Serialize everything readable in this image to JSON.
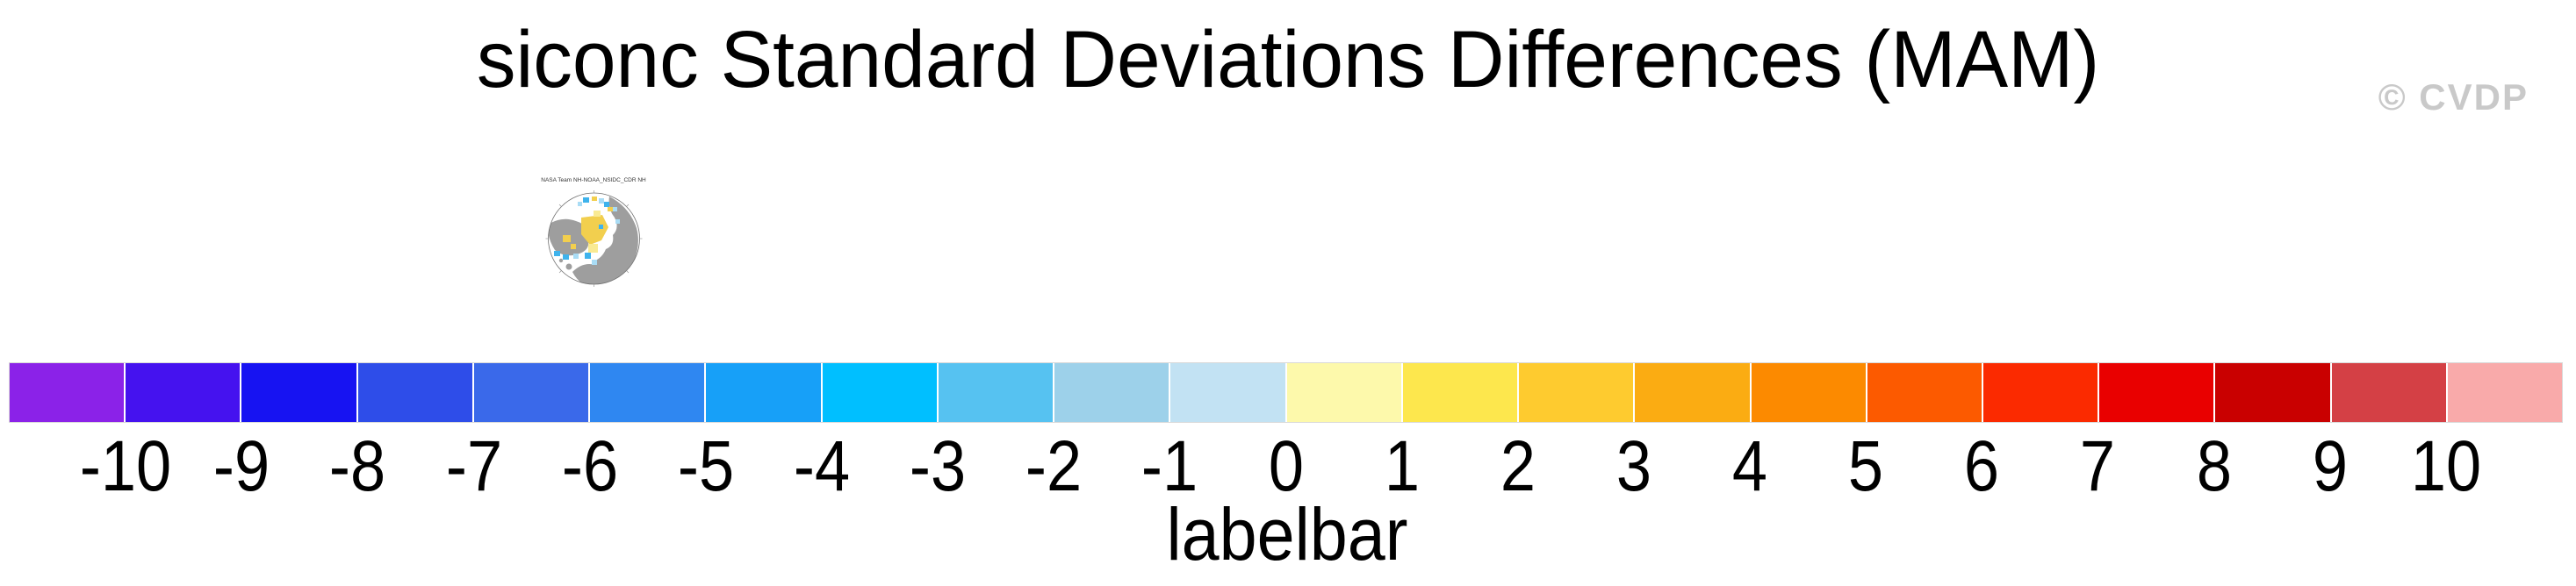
{
  "header": {
    "title": "siconc Standard Deviations Differences (MAM)",
    "watermark": "© CVDP",
    "watermark_color": "#c9c9c9"
  },
  "thumbnail": {
    "title": "NASA Team NH-NOAA_NSIDC_CDR NH",
    "land_color": "#9e9e9e",
    "ocean_color": "#ffffff",
    "outline_color": "#6f6f6f",
    "tick_mark_color": "#9a9a9a",
    "positive_patch_color": "#f2cf4e",
    "positive_patch_light_color": "#f9ea93",
    "negative_patch_color": "#3fb3ec",
    "negative_patch_light_color": "#a9dcf5"
  },
  "labelbar": {
    "caption": "labelbar",
    "tick_labels": [
      "-10",
      "-9",
      "-8",
      "-7",
      "-6",
      "-5",
      "-4",
      "-3",
      "-2",
      "-1",
      "0",
      "1",
      "2",
      "3",
      "4",
      "5",
      "6",
      "7",
      "8",
      "9",
      "10"
    ],
    "colors": [
      "#8b22e8",
      "#4512ef",
      "#1713f2",
      "#2e4de9",
      "#3a69ea",
      "#2f87f1",
      "#17a0f8",
      "#00bfff",
      "#56c2f1",
      "#9dd1ea",
      "#c2e2f3",
      "#fdf9ab",
      "#fde74d",
      "#fecb2f",
      "#fbac12",
      "#fc8a00",
      "#fc5a00",
      "#fb2a00",
      "#e90000",
      "#c90000",
      "#d44045",
      "#f9aaaa"
    ],
    "separator_color": "#ffffff",
    "border_color": "#d9d9d9"
  },
  "chart_data": {
    "type": "heatmap",
    "title": "siconc Standard Deviations Differences (MAM)",
    "subtitle": "NASA Team NH-NOAA_NSIDC_CDR NH",
    "xlabel": "labelbar",
    "ylabel": "",
    "legend_position": "bottom",
    "grid": false,
    "levels": [
      -10,
      -9,
      -8,
      -7,
      -6,
      -5,
      -4,
      -3,
      -2,
      -1,
      0,
      1,
      2,
      3,
      4,
      5,
      6,
      7,
      8,
      9,
      10
    ],
    "level_range": [
      -10,
      10
    ],
    "colors": [
      "#8b22e8",
      "#4512ef",
      "#1713f2",
      "#2e4de9",
      "#3a69ea",
      "#2f87f1",
      "#17a0f8",
      "#00bfff",
      "#56c2f1",
      "#9dd1ea",
      "#c2e2f3",
      "#fdf9ab",
      "#fde74d",
      "#fecb2f",
      "#fbac12",
      "#fc8a00",
      "#fc5a00",
      "#fb2a00",
      "#e90000",
      "#c90000",
      "#d44045",
      "#f9aaaa"
    ],
    "annotations": [
      "© CVDP"
    ]
  }
}
